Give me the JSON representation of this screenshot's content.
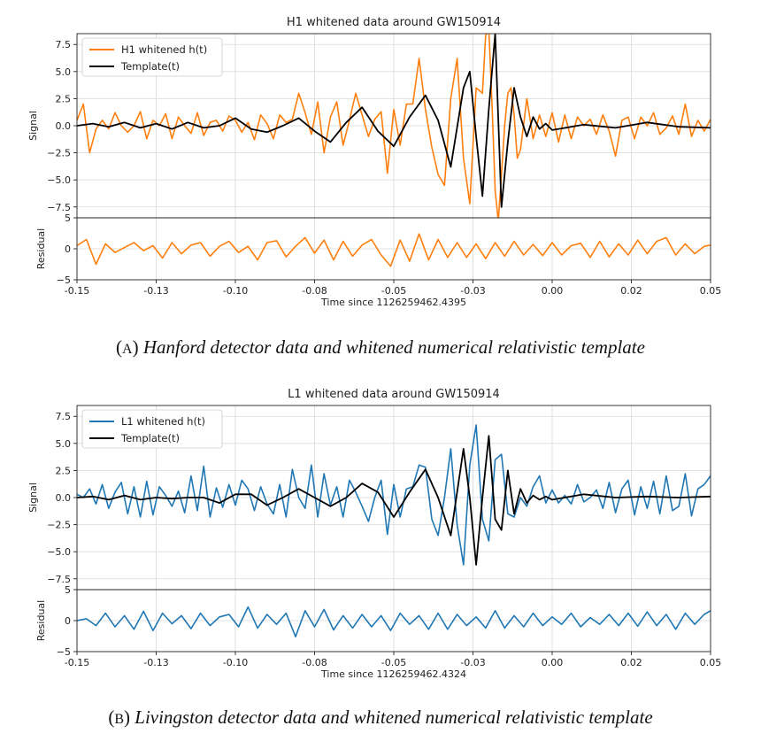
{
  "chart_data": [
    {
      "type": "line",
      "title": "H1 whitened data around GW150914",
      "xlabel": "Time since 1126259462.4395",
      "ylabel_top": "Signal",
      "ylabel_bottom": "Residual",
      "xlim": [
        -0.15,
        0.05
      ],
      "ylim_top": [
        -8.5,
        8.5
      ],
      "ylim_bottom": [
        -5,
        5
      ],
      "x_ticks": [
        -0.15,
        -0.125,
        -0.1,
        -0.075,
        -0.05,
        -0.025,
        0.0,
        0.025,
        0.05
      ],
      "x_tick_labels": [
        "-0.15",
        "-0.13",
        "-0.10",
        "-0.08",
        "-0.05",
        "-0.03",
        "0.00",
        "0.02",
        "0.05"
      ],
      "y_ticks_top": [
        7.5,
        5.0,
        2.5,
        0.0,
        -2.5,
        -5.0,
        -7.5
      ],
      "y_tick_labels_top": [
        "7.5",
        "5.0",
        "2.5",
        "0.0",
        "−2.5",
        "−5.0",
        "−7.5"
      ],
      "y_ticks_bottom": [
        5,
        0,
        -5
      ],
      "y_tick_labels_bottom": [
        "5",
        "0",
        "−5"
      ],
      "grid": true,
      "legend_position": "top-left",
      "series": [
        {
          "name": "H1 whitened h(t)",
          "color": "#ff7f0e",
          "x": [
            -0.15,
            -0.148,
            -0.146,
            -0.144,
            -0.142,
            -0.14,
            -0.138,
            -0.136,
            -0.134,
            -0.132,
            -0.13,
            -0.128,
            -0.126,
            -0.124,
            -0.122,
            -0.12,
            -0.118,
            -0.116,
            -0.114,
            -0.112,
            -0.11,
            -0.108,
            -0.106,
            -0.104,
            -0.102,
            -0.1,
            -0.098,
            -0.096,
            -0.094,
            -0.092,
            -0.09,
            -0.088,
            -0.086,
            -0.084,
            -0.082,
            -0.08,
            -0.078,
            -0.076,
            -0.074,
            -0.072,
            -0.07,
            -0.068,
            -0.066,
            -0.064,
            -0.062,
            -0.06,
            -0.058,
            -0.056,
            -0.054,
            -0.052,
            -0.05,
            -0.048,
            -0.046,
            -0.044,
            -0.042,
            -0.04,
            -0.038,
            -0.036,
            -0.034,
            -0.032,
            -0.03,
            -0.028,
            -0.026,
            -0.024,
            -0.022,
            -0.021,
            -0.02,
            -0.019,
            -0.018,
            -0.017,
            -0.016,
            -0.015,
            -0.014,
            -0.013,
            -0.012,
            -0.011,
            -0.01,
            -0.008,
            -0.006,
            -0.004,
            -0.002,
            0.0,
            0.002,
            0.004,
            0.006,
            0.008,
            0.01,
            0.012,
            0.014,
            0.016,
            0.018,
            0.02,
            0.022,
            0.024,
            0.026,
            0.028,
            0.03,
            0.032,
            0.034,
            0.036,
            0.038,
            0.04,
            0.042,
            0.044,
            0.046,
            0.048,
            0.05
          ],
          "y": [
            0.5,
            2.0,
            -2.5,
            -0.3,
            0.5,
            -0.3,
            1.2,
            0.0,
            -0.6,
            0.0,
            1.3,
            -1.2,
            0.5,
            0.0,
            1.1,
            -1.2,
            0.8,
            0.0,
            -0.7,
            1.2,
            -0.9,
            0.3,
            0.5,
            -0.5,
            0.9,
            0.5,
            -0.6,
            0.3,
            -1.3,
            1.0,
            0.2,
            -1.2,
            1.0,
            0.3,
            0.6,
            3.0,
            1.2,
            -0.8,
            2.2,
            -2.5,
            0.8,
            2.2,
            -1.8,
            0.5,
            3.0,
            1.0,
            -1.0,
            0.6,
            1.3,
            -4.4,
            1.5,
            -1.8,
            2.0,
            2.0,
            6.2,
            1.5,
            -2.0,
            -4.5,
            -5.5,
            2.5,
            6.2,
            -3.0,
            -7.2,
            3.5,
            3.0,
            8.3,
            9.0,
            2.0,
            -6.0,
            -8.8,
            -4.5,
            0.0,
            3.0,
            3.5,
            1.0,
            -3.0,
            -2.2,
            2.5,
            -1.2,
            1.0,
            -1.0,
            1.2,
            -1.5,
            1.0,
            -1.2,
            0.8,
            0.0,
            0.6,
            -0.8,
            1.0,
            -0.5,
            -2.8,
            0.5,
            0.8,
            -1.2,
            0.8,
            0.0,
            1.2,
            -0.8,
            -0.2,
            0.9,
            -0.8,
            2.0,
            -1.0,
            0.5,
            -0.5,
            0.6
          ]
        },
        {
          "name": "Template(t)",
          "color": "#000000",
          "x": [
            -0.15,
            -0.145,
            -0.14,
            -0.135,
            -0.13,
            -0.125,
            -0.12,
            -0.115,
            -0.11,
            -0.105,
            -0.1,
            -0.095,
            -0.09,
            -0.085,
            -0.08,
            -0.075,
            -0.07,
            -0.065,
            -0.06,
            -0.055,
            -0.05,
            -0.045,
            -0.04,
            -0.036,
            -0.032,
            -0.028,
            -0.026,
            -0.024,
            -0.022,
            -0.02,
            -0.018,
            -0.016,
            -0.014,
            -0.012,
            -0.01,
            -0.008,
            -0.006,
            -0.004,
            -0.002,
            0.0,
            0.01,
            0.02,
            0.03,
            0.04,
            0.05
          ],
          "y": [
            0.0,
            0.2,
            -0.1,
            0.3,
            -0.2,
            0.2,
            -0.3,
            0.3,
            -0.2,
            0.0,
            0.7,
            -0.3,
            -0.6,
            0.0,
            0.7,
            -0.5,
            -1.5,
            0.3,
            1.7,
            -0.5,
            -1.9,
            0.8,
            2.8,
            0.5,
            -3.8,
            3.5,
            5.0,
            -1.0,
            -6.5,
            1.5,
            8.5,
            -7.5,
            -1.5,
            3.5,
            0.8,
            -1.0,
            0.8,
            -0.3,
            0.2,
            -0.4,
            0.1,
            -0.2,
            0.3,
            -0.1,
            -0.2
          ]
        }
      ],
      "residual": {
        "color": "#ff7f0e",
        "x": [
          -0.15,
          -0.147,
          -0.144,
          -0.141,
          -0.138,
          -0.135,
          -0.132,
          -0.129,
          -0.126,
          -0.123,
          -0.12,
          -0.117,
          -0.114,
          -0.111,
          -0.108,
          -0.105,
          -0.102,
          -0.099,
          -0.096,
          -0.093,
          -0.09,
          -0.087,
          -0.084,
          -0.081,
          -0.078,
          -0.075,
          -0.072,
          -0.069,
          -0.066,
          -0.063,
          -0.06,
          -0.057,
          -0.054,
          -0.051,
          -0.048,
          -0.045,
          -0.042,
          -0.039,
          -0.036,
          -0.033,
          -0.03,
          -0.027,
          -0.024,
          -0.021,
          -0.018,
          -0.015,
          -0.012,
          -0.009,
          -0.006,
          -0.003,
          0.0,
          0.003,
          0.006,
          0.009,
          0.012,
          0.015,
          0.018,
          0.021,
          0.024,
          0.027,
          0.03,
          0.033,
          0.036,
          0.039,
          0.042,
          0.045,
          0.048,
          0.05
        ],
        "y": [
          0.5,
          1.5,
          -2.5,
          0.8,
          -0.6,
          0.2,
          1.0,
          -0.3,
          0.5,
          -1.5,
          1.0,
          -0.8,
          0.6,
          1.0,
          -1.2,
          0.4,
          1.2,
          -0.6,
          0.4,
          -1.8,
          1.0,
          1.3,
          -1.3,
          0.4,
          1.8,
          -0.7,
          1.4,
          -1.8,
          1.2,
          -1.2,
          0.6,
          1.5,
          -1.0,
          -2.8,
          1.4,
          -2.0,
          2.4,
          -1.8,
          1.5,
          -1.4,
          1.0,
          -1.4,
          0.8,
          -1.6,
          1.0,
          -1.2,
          1.2,
          -1.0,
          0.7,
          -1.1,
          1.0,
          -1.0,
          0.5,
          0.9,
          -1.4,
          1.2,
          -1.3,
          0.8,
          -1.0,
          1.4,
          -0.8,
          1.2,
          1.8,
          -1.0,
          0.8,
          -0.8,
          0.4,
          0.6
        ]
      }
    },
    {
      "type": "line",
      "title": "L1 whitened data around GW150914",
      "xlabel": "Time since 1126259462.4324",
      "ylabel_top": "Signal",
      "ylabel_bottom": "Residual",
      "xlim": [
        -0.15,
        0.05
      ],
      "ylim_top": [
        -8.5,
        8.5
      ],
      "ylim_bottom": [
        -5,
        5
      ],
      "x_ticks": [
        -0.15,
        -0.125,
        -0.1,
        -0.075,
        -0.05,
        -0.025,
        0.0,
        0.025,
        0.05
      ],
      "x_tick_labels": [
        "-0.15",
        "-0.13",
        "-0.10",
        "-0.08",
        "-0.05",
        "-0.03",
        "0.00",
        "0.02",
        "0.05"
      ],
      "y_ticks_top": [
        7.5,
        5.0,
        2.5,
        0.0,
        -2.5,
        -5.0,
        -7.5
      ],
      "y_tick_labels_top": [
        "7.5",
        "5.0",
        "2.5",
        "0.0",
        "−2.5",
        "−5.0",
        "−7.5"
      ],
      "y_ticks_bottom": [
        5,
        0,
        -5
      ],
      "y_tick_labels_bottom": [
        "5",
        "0",
        "−5"
      ],
      "grid": true,
      "legend_position": "top-left",
      "series": [
        {
          "name": "L1 whitened h(t)",
          "color": "#1f77b4",
          "x": [
            -0.15,
            -0.148,
            -0.146,
            -0.144,
            -0.142,
            -0.14,
            -0.138,
            -0.136,
            -0.134,
            -0.132,
            -0.13,
            -0.128,
            -0.126,
            -0.124,
            -0.122,
            -0.12,
            -0.118,
            -0.116,
            -0.114,
            -0.112,
            -0.11,
            -0.108,
            -0.106,
            -0.104,
            -0.102,
            -0.1,
            -0.098,
            -0.096,
            -0.094,
            -0.092,
            -0.09,
            -0.088,
            -0.086,
            -0.084,
            -0.082,
            -0.08,
            -0.078,
            -0.076,
            -0.074,
            -0.072,
            -0.07,
            -0.068,
            -0.066,
            -0.064,
            -0.062,
            -0.06,
            -0.058,
            -0.056,
            -0.054,
            -0.052,
            -0.05,
            -0.048,
            -0.046,
            -0.044,
            -0.042,
            -0.04,
            -0.038,
            -0.036,
            -0.034,
            -0.032,
            -0.03,
            -0.028,
            -0.026,
            -0.024,
            -0.022,
            -0.02,
            -0.018,
            -0.016,
            -0.014,
            -0.012,
            -0.01,
            -0.008,
            -0.006,
            -0.004,
            -0.002,
            0.0,
            0.002,
            0.004,
            0.006,
            0.008,
            0.01,
            0.012,
            0.014,
            0.016,
            0.018,
            0.02,
            0.022,
            0.024,
            0.026,
            0.028,
            0.03,
            0.032,
            0.034,
            0.036,
            0.038,
            0.04,
            0.042,
            0.044,
            0.046,
            0.048,
            0.05
          ],
          "y": [
            0.3,
            0.0,
            0.8,
            -0.6,
            1.2,
            -1.0,
            0.5,
            1.4,
            -1.5,
            1.0,
            -1.8,
            1.5,
            -1.6,
            1.0,
            0.2,
            -0.8,
            0.6,
            -1.4,
            2.0,
            -1.2,
            2.9,
            -1.8,
            0.9,
            -0.9,
            1.2,
            -0.7,
            1.6,
            0.8,
            -1.2,
            1.0,
            -0.6,
            -1.5,
            1.2,
            -1.8,
            2.6,
            0.0,
            -1.0,
            3.0,
            -1.8,
            2.2,
            -0.7,
            1.0,
            -1.8,
            1.6,
            0.5,
            -0.8,
            -2.2,
            0.0,
            1.6,
            -3.4,
            1.2,
            -1.8,
            0.8,
            1.0,
            3.0,
            2.8,
            -2.0,
            -3.5,
            0.0,
            4.5,
            -2.5,
            -6.2,
            3.0,
            6.7,
            -2.0,
            -4.0,
            3.5,
            4.0,
            -1.5,
            -1.8,
            0.0,
            -0.8,
            1.0,
            2.0,
            -0.5,
            0.7,
            -0.5,
            0.2,
            -0.6,
            1.2,
            -0.4,
            0.0,
            0.7,
            -1.0,
            1.4,
            -1.4,
            0.8,
            1.6,
            -1.6,
            1.0,
            -1.0,
            1.5,
            -1.5,
            2.0,
            -1.2,
            -0.8,
            2.2,
            -1.7,
            0.8,
            1.2,
            2.0
          ]
        },
        {
          "name": "Template(t)",
          "color": "#000000",
          "x": [
            -0.15,
            -0.145,
            -0.14,
            -0.135,
            -0.13,
            -0.125,
            -0.12,
            -0.115,
            -0.11,
            -0.105,
            -0.1,
            -0.095,
            -0.09,
            -0.085,
            -0.08,
            -0.075,
            -0.07,
            -0.065,
            -0.06,
            -0.055,
            -0.05,
            -0.045,
            -0.04,
            -0.036,
            -0.032,
            -0.03,
            -0.028,
            -0.026,
            -0.024,
            -0.022,
            -0.02,
            -0.018,
            -0.016,
            -0.014,
            -0.012,
            -0.01,
            -0.008,
            -0.006,
            -0.004,
            -0.002,
            0.0,
            0.01,
            0.02,
            0.03,
            0.04,
            0.05
          ],
          "y": [
            0.0,
            0.1,
            -0.2,
            0.2,
            -0.2,
            0.0,
            -0.1,
            0.0,
            0.0,
            -0.5,
            0.3,
            0.3,
            -0.7,
            0.0,
            0.8,
            0.0,
            -0.8,
            0.0,
            1.3,
            0.5,
            -1.8,
            0.5,
            2.6,
            0.0,
            -3.5,
            0.5,
            4.5,
            0.0,
            -6.2,
            0.0,
            5.7,
            -2.0,
            -3.0,
            2.5,
            -1.5,
            0.8,
            -0.5,
            0.2,
            -0.2,
            0.1,
            -0.2,
            0.3,
            0.0,
            0.1,
            0.0,
            0.1
          ]
        }
      ],
      "residual": {
        "color": "#1f77b4",
        "x": [
          -0.15,
          -0.147,
          -0.144,
          -0.141,
          -0.138,
          -0.135,
          -0.132,
          -0.129,
          -0.126,
          -0.123,
          -0.12,
          -0.117,
          -0.114,
          -0.111,
          -0.108,
          -0.105,
          -0.102,
          -0.099,
          -0.096,
          -0.093,
          -0.09,
          -0.087,
          -0.084,
          -0.081,
          -0.078,
          -0.075,
          -0.072,
          -0.069,
          -0.066,
          -0.063,
          -0.06,
          -0.057,
          -0.054,
          -0.051,
          -0.048,
          -0.045,
          -0.042,
          -0.039,
          -0.036,
          -0.033,
          -0.03,
          -0.027,
          -0.024,
          -0.021,
          -0.018,
          -0.015,
          -0.012,
          -0.009,
          -0.006,
          -0.003,
          0.0,
          0.003,
          0.006,
          0.009,
          0.012,
          0.015,
          0.018,
          0.021,
          0.024,
          0.027,
          0.03,
          0.033,
          0.036,
          0.039,
          0.042,
          0.045,
          0.048,
          0.05
        ],
        "y": [
          0.0,
          0.3,
          -0.8,
          1.2,
          -1.0,
          0.8,
          -1.4,
          1.5,
          -1.6,
          1.2,
          -0.5,
          0.8,
          -1.3,
          1.2,
          -0.8,
          0.6,
          1.0,
          -1.0,
          2.2,
          -1.2,
          1.0,
          -0.6,
          1.2,
          -2.6,
          1.6,
          -1.0,
          1.8,
          -1.5,
          0.8,
          -1.2,
          1.0,
          -1.0,
          0.8,
          -1.6,
          1.2,
          -0.6,
          0.8,
          -1.4,
          1.2,
          -1.4,
          1.0,
          -0.8,
          0.6,
          -1.2,
          1.6,
          -1.2,
          0.8,
          -1.0,
          1.2,
          -0.8,
          0.6,
          -0.6,
          1.2,
          -1.0,
          0.5,
          -0.6,
          1.0,
          -0.8,
          1.2,
          -0.9,
          1.4,
          -0.8,
          1.0,
          -1.4,
          1.2,
          -0.6,
          1.0,
          1.6
        ]
      }
    }
  ],
  "captions": [
    {
      "prefix": "(",
      "letter": "A",
      "suffix": ") ",
      "text": "Hanford detector data and whitened numerical relativistic template"
    },
    {
      "prefix": "(",
      "letter": "B",
      "suffix": ") ",
      "text": "Livingston detector data and whitened numerical relativistic template"
    }
  ]
}
